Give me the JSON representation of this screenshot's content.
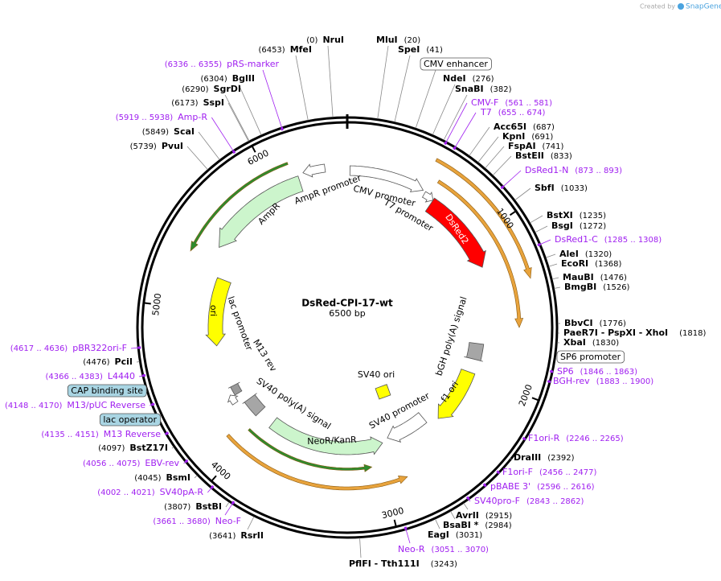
{
  "brand": {
    "prefix": "Created by",
    "name": "SnapGene"
  },
  "map": {
    "title": "DsRed-CPI-17-wt",
    "subtitle": "6500 bp",
    "ticks": [
      "1000",
      "2000",
      "3000",
      "4000",
      "5000",
      "6000"
    ],
    "features": [
      {
        "name": "CMV promoter",
        "color": "#ffffff"
      },
      {
        "name": "T7 promoter",
        "color": "#ffffff"
      },
      {
        "name": "DsRed2",
        "color": "#ff0000"
      },
      {
        "name": "AmpR promoter",
        "color": "#ffffff"
      },
      {
        "name": "AmpR",
        "color": "#ccf5cc"
      },
      {
        "name": "ori",
        "color": "#ffff00"
      },
      {
        "name": "lac promoter",
        "color": "#ffffff"
      },
      {
        "name": "M13 rev",
        "color": "#999999"
      },
      {
        "name": "SV40 poly(A) signal",
        "color": "#a6a6a6"
      },
      {
        "name": "SV40 ori",
        "color": "#ffff00"
      },
      {
        "name": "bGH poly(A) signal",
        "color": "#a6a6a6"
      },
      {
        "name": "f1 ori",
        "color": "#ffff00"
      },
      {
        "name": "SV40 promoter",
        "color": "#ffffff"
      },
      {
        "name": "NeoR/KanR",
        "color": "#ccf5cc"
      }
    ],
    "labels": [
      {
        "name": "NruI",
        "position": "(0)",
        "color": "#000000"
      },
      {
        "name": "MluI",
        "position": "(20)",
        "color": "#000000"
      },
      {
        "name": "MfeI",
        "position": "(6453)",
        "color": "#000000"
      },
      {
        "name": "SpeI",
        "position": "(41)",
        "color": "#000000"
      },
      {
        "name": "CMV enhancer",
        "color": "#000000",
        "box": "#ffffff"
      },
      {
        "name": "pRS-marker",
        "position": "(6336 .. 6355)",
        "color": "#a020f0"
      },
      {
        "name": "NdeI",
        "position": "(276)",
        "color": "#000000"
      },
      {
        "name": "BglII",
        "position": "(6304)",
        "color": "#000000"
      },
      {
        "name": "SnaBI",
        "position": "(382)",
        "color": "#000000"
      },
      {
        "name": "SgrDI",
        "position": "(6290)",
        "color": "#000000"
      },
      {
        "name": "SspI",
        "position": "(6173)",
        "color": "#000000"
      },
      {
        "name": "CMV-F",
        "position": "(561 .. 581)",
        "color": "#a020f0"
      },
      {
        "name": "T7",
        "position": "(655 .. 674)",
        "color": "#a020f0"
      },
      {
        "name": "Amp-R",
        "position": "(5919 .. 5938)",
        "color": "#a020f0"
      },
      {
        "name": "Acc65I",
        "position": "(687)",
        "color": "#000000"
      },
      {
        "name": "ScaI",
        "position": "(5849)",
        "color": "#000000"
      },
      {
        "name": "KpnI",
        "position": "(691)",
        "color": "#000000"
      },
      {
        "name": "FspAI",
        "position": "(741)",
        "color": "#000000"
      },
      {
        "name": "PvuI",
        "position": "(5739)",
        "color": "#000000"
      },
      {
        "name": "BstEII",
        "position": "(833)",
        "color": "#000000"
      },
      {
        "name": "DsRed1-N",
        "position": "(873 .. 893)",
        "color": "#a020f0"
      },
      {
        "name": "SbfI",
        "position": "(1033)",
        "color": "#000000"
      },
      {
        "name": "BstXI",
        "position": "(1235)",
        "color": "#000000"
      },
      {
        "name": "BsgI",
        "position": "(1272)",
        "color": "#000000"
      },
      {
        "name": "DsRed1-C",
        "position": "(1285 .. 1308)",
        "color": "#a020f0"
      },
      {
        "name": "AleI",
        "position": "(1320)",
        "color": "#000000"
      },
      {
        "name": "EcoRI",
        "position": "(1368)",
        "color": "#000000"
      },
      {
        "name": "MauBI",
        "position": "(1476)",
        "color": "#000000"
      },
      {
        "name": "BmgBI",
        "position": "(1526)",
        "color": "#000000"
      },
      {
        "name": "BbvCI",
        "position": "(1776)",
        "color": "#000000"
      },
      {
        "name": "PaeR7I - PspXI - XhoI",
        "position": "(1818)",
        "color": "#000000"
      },
      {
        "name": "XbaI",
        "position": "(1830)",
        "color": "#000000"
      },
      {
        "name": "SP6 promoter",
        "color": "#000000",
        "box": "#ffffff"
      },
      {
        "name": "SP6",
        "position": "(1846 .. 1863)",
        "color": "#a020f0"
      },
      {
        "name": "BGH-rev",
        "position": "(1883 .. 1900)",
        "color": "#a020f0"
      },
      {
        "name": "F1ori-R",
        "position": "(2246 .. 2265)",
        "color": "#a020f0"
      },
      {
        "name": "DraIII",
        "position": "(2392)",
        "color": "#000000"
      },
      {
        "name": "F1ori-F",
        "position": "(2456 .. 2477)",
        "color": "#a020f0"
      },
      {
        "name": "pBABE 3'",
        "position": "(2596 .. 2616)",
        "color": "#a020f0"
      },
      {
        "name": "SV40pro-F",
        "position": "(2843 .. 2862)",
        "color": "#a020f0"
      },
      {
        "name": "AvrII",
        "position": "(2915)",
        "color": "#000000"
      },
      {
        "name": "BsaBI *",
        "position": "(2984)",
        "color": "#000000"
      },
      {
        "name": "EagI",
        "position": "(3031)",
        "color": "#000000"
      },
      {
        "name": "Neo-R",
        "position": "(3051 .. 3070)",
        "color": "#a020f0"
      },
      {
        "name": "PflFI - Tth111I",
        "position": "(3243)",
        "color": "#000000"
      },
      {
        "name": "pBR322ori-F",
        "position": "(4617 .. 4636)",
        "color": "#a020f0"
      },
      {
        "name": "PciI",
        "position": "(4476)",
        "color": "#000000"
      },
      {
        "name": "L4440",
        "position": "(4366 .. 4383)",
        "color": "#a020f0"
      },
      {
        "name": "CAP binding site",
        "color": "#000000",
        "box": "#a9d5e3"
      },
      {
        "name": "M13/pUC Reverse",
        "position": "(4148 .. 4170)",
        "color": "#a020f0"
      },
      {
        "name": "lac operator",
        "color": "#000000",
        "box": "#a9d5e3"
      },
      {
        "name": "M13 Reverse",
        "position": "(4135 .. 4151)",
        "color": "#a020f0"
      },
      {
        "name": "BstZ17I",
        "position": "(4097)",
        "color": "#000000"
      },
      {
        "name": "EBV-rev",
        "position": "(4056 .. 4075)",
        "color": "#a020f0"
      },
      {
        "name": "BsmI",
        "position": "(4045)",
        "color": "#000000"
      },
      {
        "name": "SV40pA-R",
        "position": "(4002 .. 4021)",
        "color": "#a020f0"
      },
      {
        "name": "BstBI",
        "position": "(3807)",
        "color": "#000000"
      },
      {
        "name": "Neo-F",
        "position": "(3661 .. 3680)",
        "color": "#a020f0"
      },
      {
        "name": "RsrII",
        "position": "(3641)",
        "color": "#000000"
      }
    ]
  }
}
